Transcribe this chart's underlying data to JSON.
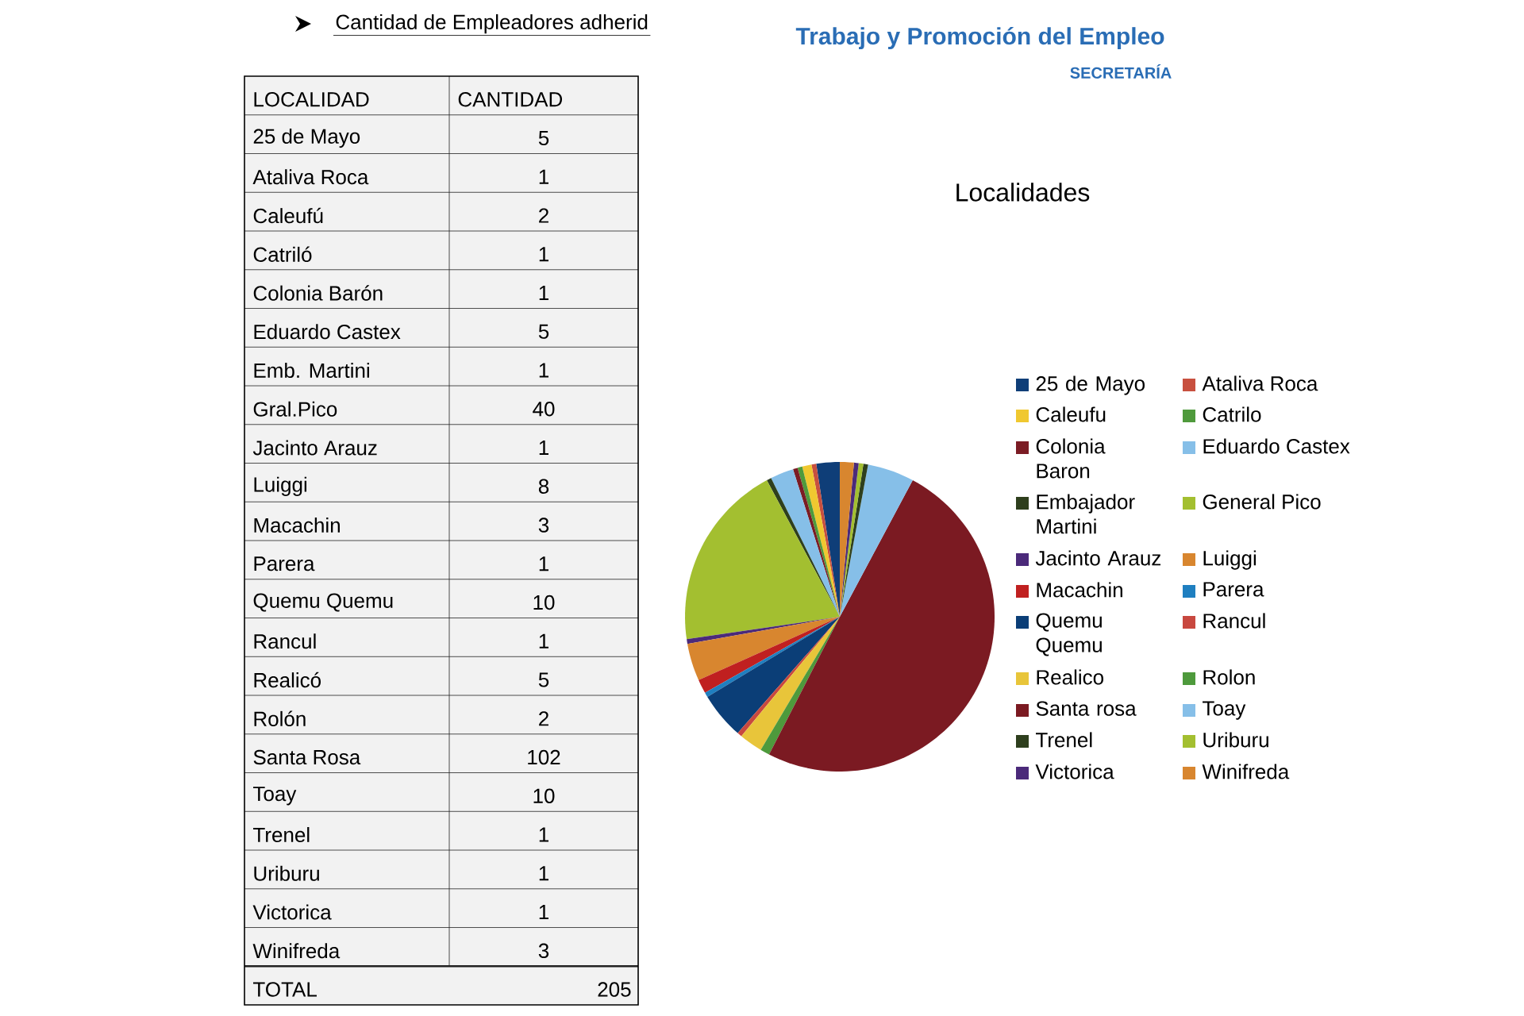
{
  "chart_data": [
    {
      "type": "other",
      "title": "Cantidad de Empleadores adherid",
      "categories": [
        "25 de Mayo",
        "Ataliva Roca",
        "Caleufú",
        "Catriló",
        "Colonia Barón",
        "Eduardo Castex",
        "Emb. Martini",
        "Gral.Pico",
        "Jacinto Arauz",
        "Luiggi",
        "Macachin",
        "Parera",
        "Quemu Quemu",
        "Rancul",
        "Realicó",
        "Rolón",
        "Santa Rosa",
        "Toay",
        "Trenel",
        "Uriburu",
        "Victorica",
        "Winifreda"
      ],
      "value_labels": [
        "5",
        "1",
        "2",
        "1",
        "1",
        "5",
        "1",
        "40",
        "1",
        "8",
        "3",
        "1",
        "10",
        "1",
        "5",
        "2",
        "102",
        "10",
        "1",
        "1",
        "1",
        "3"
      ],
      "annotations": [
        "LOCALIDAD",
        "CANTIDAD",
        "TOTAL",
        "205"
      ]
    },
    {
      "type": "pie",
      "title": "Localidades",
      "categories": [
        "25 de Mayo",
        "Ataliva Roca",
        "Caleufu",
        "Catrilo",
        "Colonia Baron",
        "Eduardo Castex",
        "Embajador Martini",
        "General Pico",
        "Jacinto Arauz",
        "Luiggi",
        "Macachin",
        "Parera",
        "Quemu Quemu",
        "Rancul",
        "Realico",
        "Rolon",
        "Santa rosa",
        "Toay",
        "Trenel",
        "Uriburu",
        "Victorica",
        "Winifreda"
      ],
      "values": [
        2.44,
        0.49,
        0.98,
        0.49,
        0.49,
        2.44,
        0.49,
        19.51,
        0.49,
        3.9,
        1.46,
        0.49,
        4.88,
        0.49,
        2.44,
        0.98,
        49.76,
        4.88,
        0.49,
        0.49,
        0.49,
        1.46
      ],
      "colors": [
        "#0f3e78",
        "#c8503f",
        "#f0c830",
        "#4f9a3c",
        "#7b1c24",
        "#86bfe8",
        "#2e3f1d",
        "#a3bf30",
        "#4b2a7a",
        "#d8862f",
        "#c02020",
        "#1f7fc0",
        "#0b3e77",
        "#c8483f",
        "#e8c53a",
        "#4e9a3c",
        "#7b1a22",
        "#86bfe8",
        "#2e3f1d",
        "#a3bf30",
        "#4b2a7a",
        "#d8862f"
      ],
      "legend": "right",
      "annotations": [
        "Trabajo y Promoción del Empleo",
        "SECRETARÍA"
      ]
    }
  ]
}
